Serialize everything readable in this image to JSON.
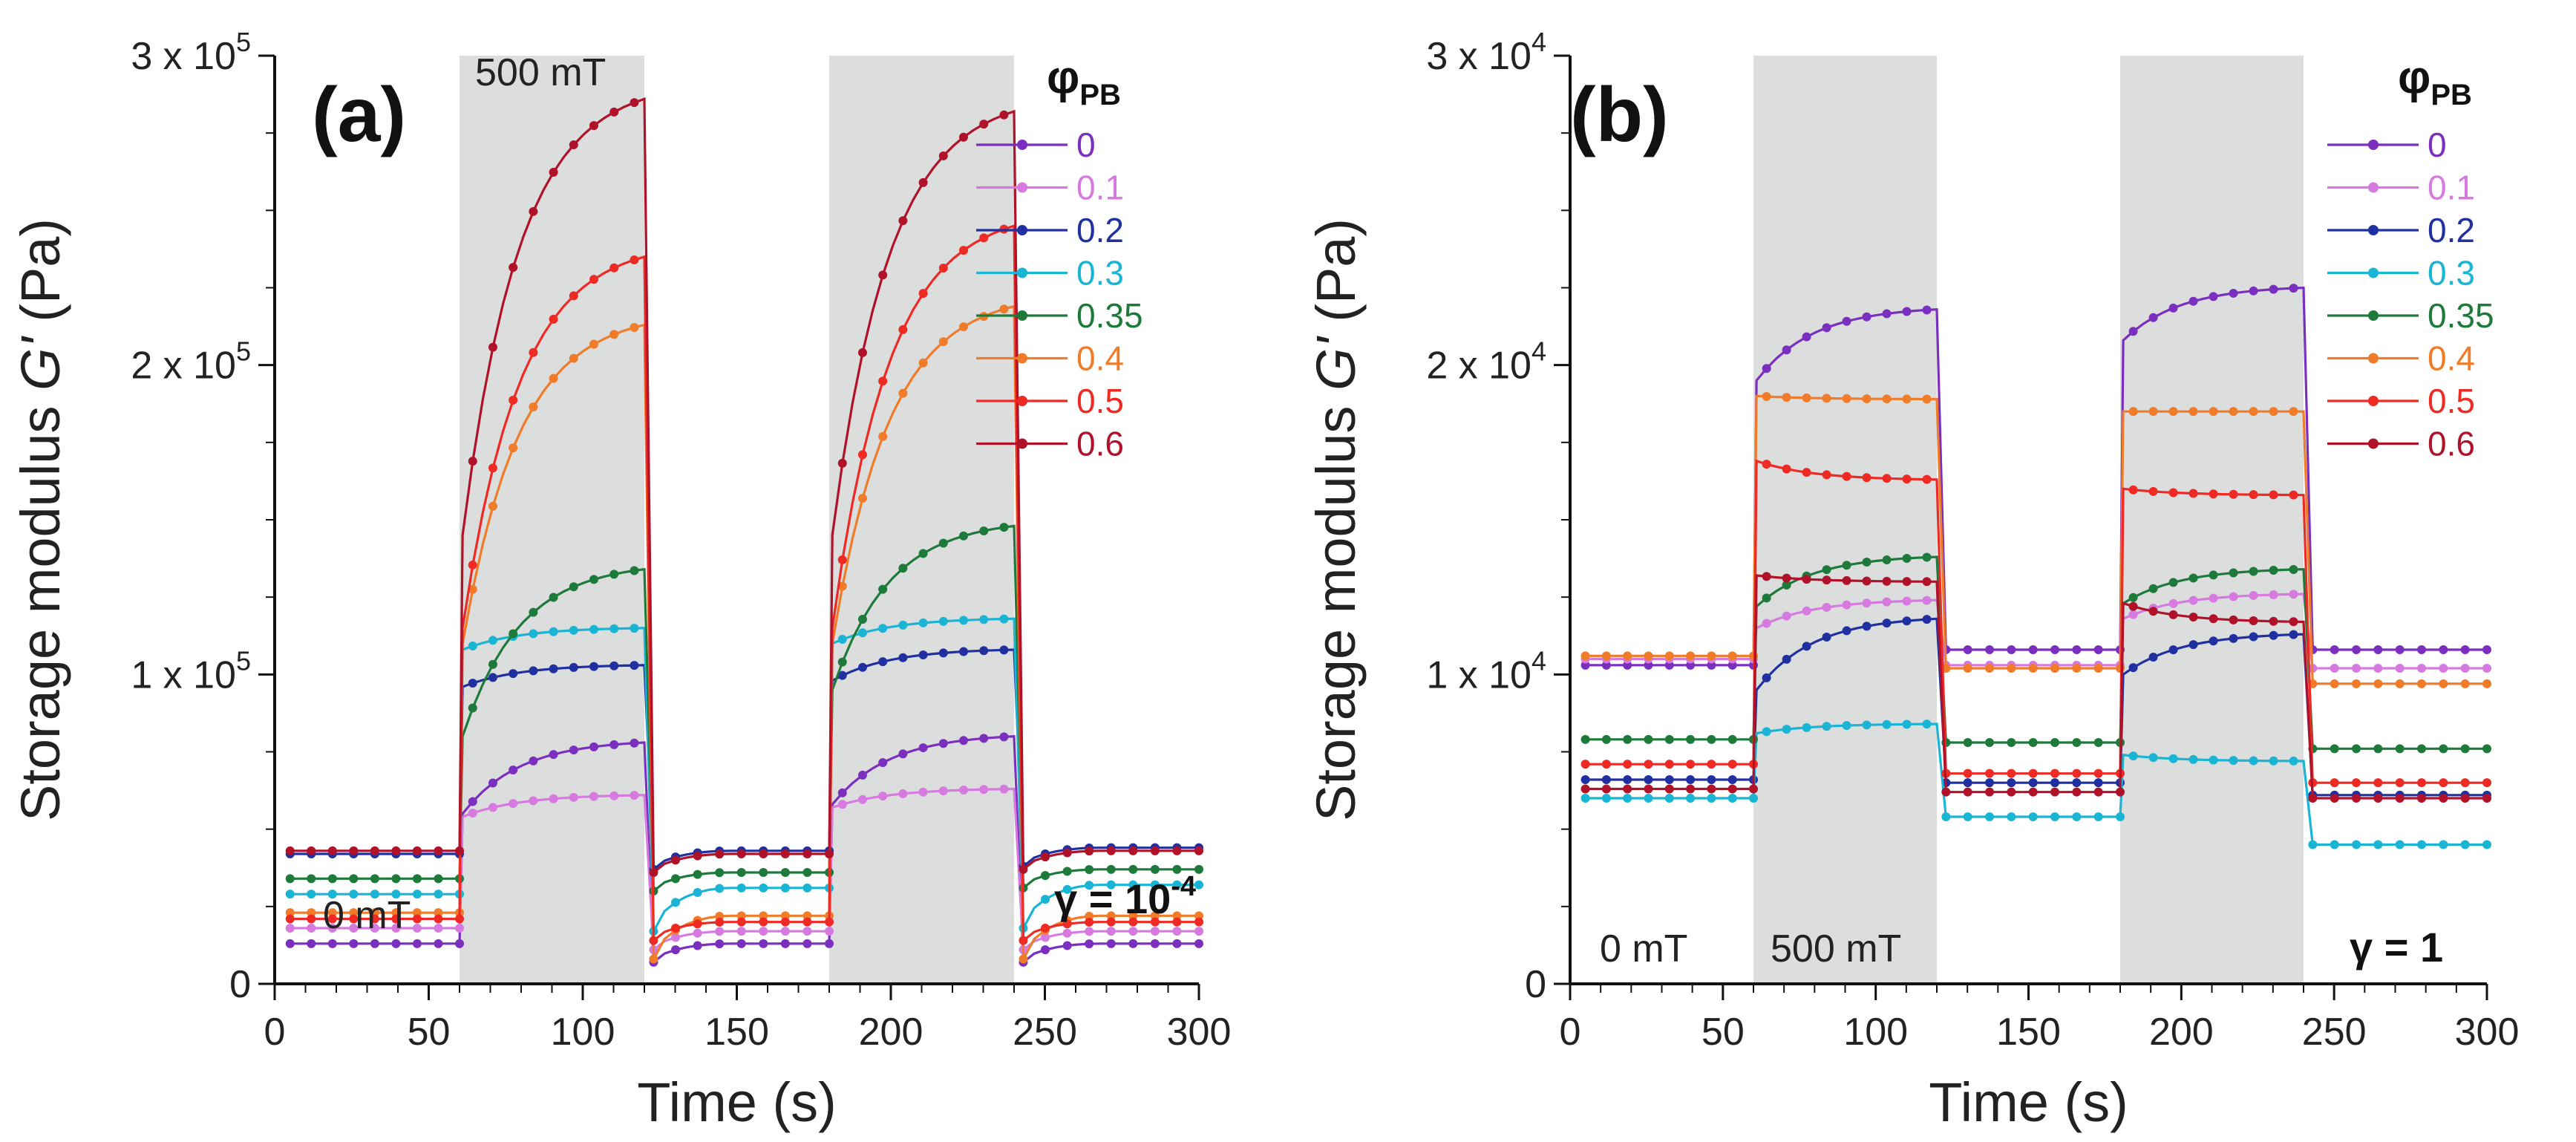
{
  "chart_data": [
    {
      "panel": "a",
      "type": "line",
      "panel_label": "(a)",
      "xlabel": "Time (s)",
      "ylabel_prefix": "Storage modulus ",
      "ylabel_symbol": "G'",
      "ylabel_unit": " (Pa)",
      "xlim": [
        0,
        300
      ],
      "ylim": [
        0,
        300000
      ],
      "x_ticks": [
        0,
        50,
        100,
        150,
        200,
        250,
        300
      ],
      "y_ticks": [
        {
          "value": 0,
          "mantissa": "0",
          "exp": ""
        },
        {
          "value": 100000,
          "mantissa": "1 x 10",
          "exp": "5"
        },
        {
          "value": 200000,
          "mantissa": "2 x 10",
          "exp": "5"
        },
        {
          "value": 300000,
          "mantissa": "3 x 10",
          "exp": "5"
        }
      ],
      "field_on_intervals": [
        [
          60,
          120
        ],
        [
          180,
          240
        ]
      ],
      "annotations": {
        "field_on": "500 mT",
        "field_off": "0 mT",
        "gamma_base": "γ = 10",
        "gamma_exp": "-4"
      },
      "legend_title_base": "φ",
      "legend_title_sub": "PB",
      "series": [
        {
          "name": "0",
          "color": "#7a2fbf",
          "off": [
            13000,
            13000,
            13000
          ],
          "on": [
            [
              55000,
              78000
            ],
            [
              58000,
              80000
            ]
          ]
        },
        {
          "name": "0.1",
          "color": "#d77ae0",
          "off": [
            18000,
            17000,
            17000
          ],
          "on": [
            [
              54000,
              61000
            ],
            [
              57000,
              63000
            ]
          ]
        },
        {
          "name": "0.2",
          "color": "#2030a0",
          "off": [
            42000,
            43000,
            44000
          ],
          "on": [
            [
              96000,
              103000
            ],
            [
              98000,
              108000
            ]
          ]
        },
        {
          "name": "0.3",
          "color": "#1ab4d4",
          "off": [
            29000,
            31000,
            32000
          ],
          "on": [
            [
              108000,
              115000
            ],
            [
              110000,
              118000
            ]
          ]
        },
        {
          "name": "0.35",
          "color": "#1e7a3a",
          "off": [
            34000,
            36000,
            37000
          ],
          "on": [
            [
              80000,
              134000
            ],
            [
              95000,
              148000
            ]
          ]
        },
        {
          "name": "0.4",
          "color": "#f07c2a",
          "off": [
            23000,
            22000,
            22000
          ],
          "on": [
            [
              110000,
              213000
            ],
            [
              110000,
              219000
            ]
          ]
        },
        {
          "name": "0.5",
          "color": "#ee2a24",
          "off": [
            21000,
            20000,
            20000
          ],
          "on": [
            [
              115000,
              235000
            ],
            [
              115000,
              245000
            ]
          ]
        },
        {
          "name": "0.6",
          "color": "#b0122a",
          "off": [
            43000,
            42000,
            43000
          ],
          "on": [
            [
              145000,
              286000
            ],
            [
              145000,
              282000
            ]
          ]
        }
      ]
    },
    {
      "panel": "b",
      "type": "line",
      "panel_label": "(b)",
      "xlabel": "Time (s)",
      "ylabel_prefix": "Storage modulus ",
      "ylabel_symbol": "G'",
      "ylabel_unit": " (Pa)",
      "xlim": [
        0,
        300
      ],
      "ylim": [
        0,
        30000
      ],
      "x_ticks": [
        0,
        50,
        100,
        150,
        200,
        250,
        300
      ],
      "y_ticks": [
        {
          "value": 0,
          "mantissa": "0",
          "exp": ""
        },
        {
          "value": 10000,
          "mantissa": "1 x 10",
          "exp": "4"
        },
        {
          "value": 20000,
          "mantissa": "2 x 10",
          "exp": "4"
        },
        {
          "value": 30000,
          "mantissa": "3 x 10",
          "exp": "4"
        }
      ],
      "field_on_intervals": [
        [
          60,
          120
        ],
        [
          180,
          240
        ]
      ],
      "annotations": {
        "field_on": "500 mT",
        "field_off": "0 mT",
        "gamma_base": "γ = 1",
        "gamma_exp": ""
      },
      "legend_title_base": "φ",
      "legend_title_sub": "PB",
      "series": [
        {
          "name": "0",
          "color": "#7a2fbf",
          "off": [
            10300,
            10800,
            10800
          ],
          "on": [
            [
              19500,
              21800
            ],
            [
              20800,
              22500
            ]
          ]
        },
        {
          "name": "0.1",
          "color": "#d77ae0",
          "off": [
            10500,
            10300,
            10200
          ],
          "on": [
            [
              11500,
              12400
            ],
            [
              11800,
              12600
            ]
          ]
        },
        {
          "name": "0.2",
          "color": "#2030a0",
          "off": [
            6600,
            6500,
            6100
          ],
          "on": [
            [
              9500,
              11800
            ],
            [
              10000,
              11300
            ]
          ]
        },
        {
          "name": "0.3",
          "color": "#1ab4d4",
          "off": [
            6000,
            5400,
            4500
          ],
          "on": [
            [
              8100,
              8400
            ],
            [
              7400,
              7200
            ]
          ]
        },
        {
          "name": "0.35",
          "color": "#1e7a3a",
          "off": [
            7900,
            7800,
            7600
          ],
          "on": [
            [
              12200,
              13800
            ],
            [
              12300,
              13400
            ]
          ]
        },
        {
          "name": "0.4",
          "color": "#f07c2a",
          "off": [
            10600,
            10200,
            9700
          ],
          "on": [
            [
              19000,
              18900
            ],
            [
              18500,
              18500
            ]
          ]
        },
        {
          "name": "0.5",
          "color": "#ee2a24",
          "off": [
            7100,
            6800,
            6500
          ],
          "on": [
            [
              16900,
              16300
            ],
            [
              16000,
              15800
            ]
          ]
        },
        {
          "name": "0.6",
          "color": "#b0122a",
          "off": [
            6300,
            6200,
            6000
          ],
          "on": [
            [
              13200,
              13000
            ],
            [
              12300,
              11700
            ]
          ]
        }
      ]
    }
  ]
}
